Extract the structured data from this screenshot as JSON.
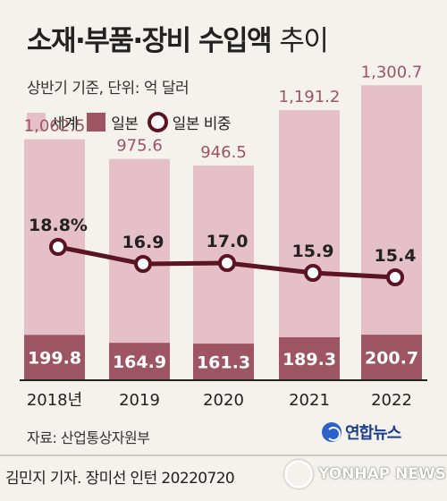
{
  "header": {
    "title_main": "소재·부품·장비 수입액",
    "title_suffix": "추이",
    "subtitle": "상반기 기준, 단위: 억 달러"
  },
  "legend": {
    "world": "세계",
    "japan": "일본",
    "japan_share": "일본 비중"
  },
  "colors": {
    "world": "#e6c0c8",
    "japan": "#9d5463",
    "line": "#5a1423",
    "world_label": "#9d5463"
  },
  "chart_data": {
    "type": "bar",
    "categories": [
      "2018년",
      "2019",
      "2020",
      "2021",
      "2022"
    ],
    "series": [
      {
        "name": "세계",
        "values": [
          1062.5,
          975.6,
          946.5,
          1191.2,
          1300.7
        ],
        "labels": [
          "1,062.5",
          "975.6",
          "946.5",
          "1,191.2",
          "1,300.7"
        ]
      },
      {
        "name": "일본",
        "values": [
          199.8,
          164.9,
          161.3,
          189.3,
          200.7
        ],
        "labels": [
          "199.8",
          "164.9",
          "161.3",
          "189.3",
          "200.7"
        ]
      }
    ],
    "line_series": {
      "name": "일본 비중",
      "values": [
        18.8,
        16.9,
        17.0,
        15.9,
        15.4
      ],
      "labels": [
        "18.8%",
        "16.9",
        "17.0",
        "15.9",
        "15.4"
      ]
    }
  },
  "footer": {
    "source": "자료: 산업통상자원부",
    "brand": "연합뉴스",
    "credit": "김민지 기자. 장미선 인턴  20220720",
    "watermark": "YONHAP NEWS"
  }
}
